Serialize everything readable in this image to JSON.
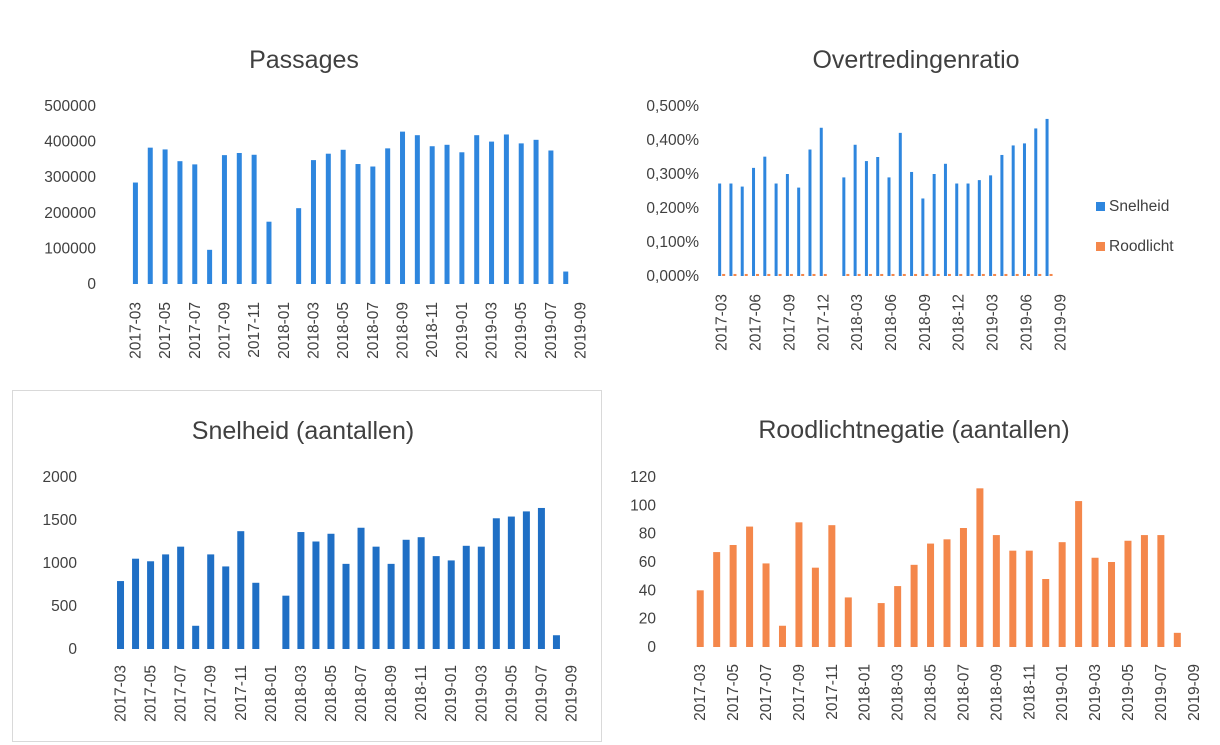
{
  "chart_data": [
    {
      "id": "passages",
      "type": "bar",
      "title": "Passages",
      "ylim": [
        0,
        500000
      ],
      "yticks": [
        "500000",
        "400000",
        "300000",
        "200000",
        "100000",
        "0"
      ],
      "x_labels": [
        "2017-03",
        "2017-05",
        "2017-07",
        "2017-09",
        "2017-11",
        "2018-01",
        "2018-03",
        "2018-05",
        "2018-07",
        "2018-09",
        "2018-11",
        "2019-01",
        "2019-03",
        "2019-05",
        "2019-07",
        "2019-09"
      ],
      "categories": [
        "2017-03",
        "2017-04",
        "2017-05",
        "2017-06",
        "2017-07",
        "2017-08",
        "2017-09",
        "2017-10",
        "2017-11",
        "2017-12",
        "2018-01",
        "2018-02",
        "2018-03",
        "2018-04",
        "2018-05",
        "2018-06",
        "2018-07",
        "2018-08",
        "2018-09",
        "2018-10",
        "2018-11",
        "2018-12",
        "2019-01",
        "2019-02",
        "2019-03",
        "2019-04",
        "2019-05",
        "2019-06",
        "2019-07",
        "2019-08",
        "2019-09"
      ],
      "series": [
        {
          "color": "#2e86de",
          "values": [
            285000,
            383000,
            378000,
            345000,
            336000,
            96000,
            362000,
            368000,
            363000,
            175000,
            null,
            213000,
            348000,
            366000,
            377000,
            337000,
            330000,
            381000,
            428000,
            418000,
            387000,
            391000,
            370000,
            418000,
            400000,
            420000,
            395000,
            405000,
            375000,
            35000,
            null
          ]
        }
      ],
      "legend": null
    },
    {
      "id": "overtredingenratio",
      "type": "bar",
      "title": "Overtredingenratio",
      "ylim": [
        0,
        0.5
      ],
      "yticks": [
        "0,500%",
        "0,400%",
        "0,300%",
        "0,200%",
        "0,100%",
        "0,000%"
      ],
      "x_labels": [
        "2017-03",
        "2017-06",
        "2017-09",
        "2017-12",
        "2018-03",
        "2018-06",
        "2018-09",
        "2018-12",
        "2019-03",
        "2019-06",
        "2019-09"
      ],
      "categories": [
        "2017-03",
        "2017-04",
        "2017-05",
        "2017-06",
        "2017-07",
        "2017-08",
        "2017-09",
        "2017-10",
        "2017-11",
        "2017-12",
        "2018-01",
        "2018-02",
        "2018-03",
        "2018-04",
        "2018-05",
        "2018-06",
        "2018-07",
        "2018-08",
        "2018-09",
        "2018-10",
        "2018-11",
        "2018-12",
        "2019-01",
        "2019-02",
        "2019-03",
        "2019-04",
        "2019-05",
        "2019-06",
        "2019-07",
        "2019-08",
        "2019-09"
      ],
      "series": [
        {
          "name": "Snelheid",
          "color": "#2e86de",
          "values": [
            0.272,
            0.272,
            0.263,
            0.318,
            0.351,
            0.272,
            0.3,
            0.26,
            0.372,
            0.436,
            null,
            0.29,
            0.386,
            0.338,
            0.35,
            0.29,
            0.421,
            0.306,
            0.228,
            0.3,
            0.33,
            0.272,
            0.272,
            0.282,
            0.296,
            0.356,
            0.384,
            0.39,
            0.434,
            0.462,
            null
          ]
        },
        {
          "name": "Roodlicht",
          "color": "#f4874b",
          "values": [
            0.006,
            0.006,
            0.006,
            0.006,
            0.006,
            0.006,
            0.006,
            0.006,
            0.006,
            0.006,
            null,
            0.006,
            0.006,
            0.006,
            0.006,
            0.006,
            0.006,
            0.006,
            0.006,
            0.006,
            0.006,
            0.006,
            0.006,
            0.006,
            0.006,
            0.006,
            0.006,
            0.006,
            0.006,
            0.006,
            null
          ]
        }
      ],
      "legend": {
        "position": "right",
        "items": [
          "Snelheid",
          "Roodlicht"
        ]
      }
    },
    {
      "id": "snelheid",
      "type": "bar",
      "title": "Snelheid (aantallen)",
      "ylim": [
        0,
        2000
      ],
      "yticks": [
        "2000",
        "1500",
        "1000",
        "500",
        "0"
      ],
      "x_labels": [
        "2017-03",
        "2017-05",
        "2017-07",
        "2017-09",
        "2017-11",
        "2018-01",
        "2018-03",
        "2018-05",
        "2018-07",
        "2018-09",
        "2018-11",
        "2019-01",
        "2019-03",
        "2019-05",
        "2019-07",
        "2019-09"
      ],
      "categories": [
        "2017-03",
        "2017-04",
        "2017-05",
        "2017-06",
        "2017-07",
        "2017-08",
        "2017-09",
        "2017-10",
        "2017-11",
        "2017-12",
        "2018-01",
        "2018-02",
        "2018-03",
        "2018-04",
        "2018-05",
        "2018-06",
        "2018-07",
        "2018-08",
        "2018-09",
        "2018-10",
        "2018-11",
        "2018-12",
        "2019-01",
        "2019-02",
        "2019-03",
        "2019-04",
        "2019-05",
        "2019-06",
        "2019-07",
        "2019-08",
        "2019-09"
      ],
      "series": [
        {
          "color": "#1f6fc5",
          "values": [
            790,
            1050,
            1020,
            1100,
            1190,
            270,
            1100,
            960,
            1370,
            770,
            null,
            620,
            1360,
            1250,
            1340,
            990,
            1410,
            1190,
            990,
            1270,
            1300,
            1080,
            1030,
            1200,
            1190,
            1520,
            1540,
            1600,
            1640,
            160,
            null
          ]
        }
      ],
      "legend": null
    },
    {
      "id": "roodlicht",
      "type": "bar",
      "title": "Roodlichtnegatie (aantallen)",
      "ylim": [
        0,
        120
      ],
      "yticks": [
        "120",
        "100",
        "80",
        "60",
        "40",
        "20",
        "0"
      ],
      "x_labels": [
        "2017-03",
        "2017-05",
        "2017-07",
        "2017-09",
        "2017-11",
        "2018-01",
        "2018-03",
        "2018-05",
        "2018-07",
        "2018-09",
        "2018-11",
        "2019-01",
        "2019-03",
        "2019-05",
        "2019-07",
        "2019-09"
      ],
      "categories": [
        "2017-03",
        "2017-04",
        "2017-05",
        "2017-06",
        "2017-07",
        "2017-08",
        "2017-09",
        "2017-10",
        "2017-11",
        "2017-12",
        "2018-01",
        "2018-02",
        "2018-03",
        "2018-04",
        "2018-05",
        "2018-06",
        "2018-07",
        "2018-08",
        "2018-09",
        "2018-10",
        "2018-11",
        "2018-12",
        "2019-01",
        "2019-02",
        "2019-03",
        "2019-04",
        "2019-05",
        "2019-06",
        "2019-07",
        "2019-08",
        "2019-09"
      ],
      "series": [
        {
          "color": "#f4874b",
          "values": [
            40,
            67,
            72,
            85,
            59,
            15,
            88,
            56,
            86,
            35,
            null,
            31,
            43,
            58,
            73,
            76,
            84,
            112,
            79,
            68,
            68,
            48,
            74,
            103,
            63,
            60,
            75,
            79,
            79,
            10,
            null
          ]
        }
      ],
      "legend": null
    }
  ]
}
